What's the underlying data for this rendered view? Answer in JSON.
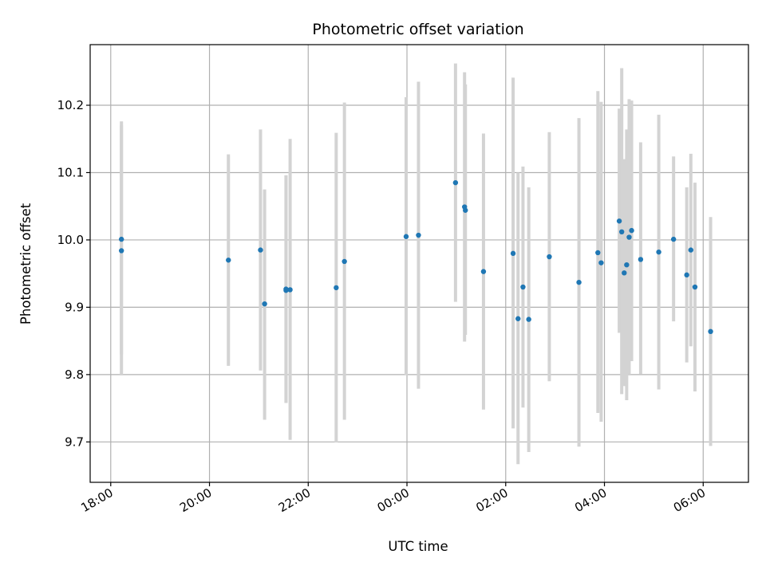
{
  "chart_data": {
    "type": "scatter",
    "title": "Photometric offset variation",
    "xlabel": "UTC time",
    "ylabel": "Photometric offset",
    "grid": true,
    "x_tick_labels": [
      "18:00",
      "20:00",
      "22:00",
      "00:00",
      "02:00",
      "04:00",
      "06:00"
    ],
    "y_tick_labels": [
      "9.7",
      "9.8",
      "9.9",
      "10.0",
      "10.1",
      "10.2"
    ],
    "xlim": [
      "17:35",
      "06:55"
    ],
    "ylim": [
      9.64,
      10.29
    ],
    "series": [
      {
        "points": [
          {
            "x": "18:13",
            "y": 9.984,
            "yerr_low": 9.8,
            "yerr_high": 10.176
          },
          {
            "x": "18:13",
            "y": 10.001,
            "yerr_low": 9.83,
            "yerr_high": 10.17
          },
          {
            "x": "20:23",
            "y": 9.97,
            "yerr_low": 9.813,
            "yerr_high": 10.127
          },
          {
            "x": "21:02",
            "y": 9.985,
            "yerr_low": 9.806,
            "yerr_high": 10.164
          },
          {
            "x": "21:07",
            "y": 9.905,
            "yerr_low": 9.733,
            "yerr_high": 10.075
          },
          {
            "x": "21:33",
            "y": 9.927,
            "yerr_low": 9.758,
            "yerr_high": 10.096
          },
          {
            "x": "21:33",
            "y": 9.925,
            "yerr_low": 9.758,
            "yerr_high": 10.096
          },
          {
            "x": "21:38",
            "y": 9.926,
            "yerr_low": 9.703,
            "yerr_high": 10.15
          },
          {
            "x": "22:34",
            "y": 9.929,
            "yerr_low": 9.699,
            "yerr_high": 10.159
          },
          {
            "x": "22:44",
            "y": 9.968,
            "yerr_low": 9.733,
            "yerr_high": 10.204
          },
          {
            "x": "23:59",
            "y": 10.005,
            "yerr_low": 9.799,
            "yerr_high": 10.212
          },
          {
            "x": "00:14",
            "y": 10.007,
            "yerr_low": 9.779,
            "yerr_high": 10.235
          },
          {
            "x": "00:59",
            "y": 10.085,
            "yerr_low": 9.908,
            "yerr_high": 10.262
          },
          {
            "x": "01:10",
            "y": 10.049,
            "yerr_low": 9.849,
            "yerr_high": 10.249
          },
          {
            "x": "01:11",
            "y": 10.044,
            "yerr_low": 9.859,
            "yerr_high": 10.231
          },
          {
            "x": "01:33",
            "y": 9.953,
            "yerr_low": 9.748,
            "yerr_high": 10.158
          },
          {
            "x": "02:09",
            "y": 9.98,
            "yerr_low": 9.72,
            "yerr_high": 10.241
          },
          {
            "x": "02:15",
            "y": 9.883,
            "yerr_low": 9.667,
            "yerr_high": 10.1
          },
          {
            "x": "02:21",
            "y": 9.93,
            "yerr_low": 9.751,
            "yerr_high": 10.109
          },
          {
            "x": "02:28",
            "y": 9.882,
            "yerr_low": 9.685,
            "yerr_high": 10.078
          },
          {
            "x": "02:53",
            "y": 9.975,
            "yerr_low": 9.79,
            "yerr_high": 10.16
          },
          {
            "x": "03:29",
            "y": 9.937,
            "yerr_low": 9.693,
            "yerr_high": 10.181
          },
          {
            "x": "03:52",
            "y": 9.981,
            "yerr_low": 9.743,
            "yerr_high": 10.221
          },
          {
            "x": "03:56",
            "y": 9.966,
            "yerr_low": 9.73,
            "yerr_high": 10.205
          },
          {
            "x": "04:18",
            "y": 10.028,
            "yerr_low": 9.862,
            "yerr_high": 10.195
          },
          {
            "x": "04:21",
            "y": 10.012,
            "yerr_low": 9.771,
            "yerr_high": 10.255
          },
          {
            "x": "04:24",
            "y": 9.951,
            "yerr_low": 9.783,
            "yerr_high": 10.12
          },
          {
            "x": "04:27",
            "y": 9.963,
            "yerr_low": 9.762,
            "yerr_high": 10.164
          },
          {
            "x": "04:30",
            "y": 10.004,
            "yerr_low": 9.8,
            "yerr_high": 10.209
          },
          {
            "x": "04:33",
            "y": 10.014,
            "yerr_low": 9.82,
            "yerr_high": 10.207
          },
          {
            "x": "04:44",
            "y": 9.971,
            "yerr_low": 9.801,
            "yerr_high": 10.145
          },
          {
            "x": "05:06",
            "y": 9.982,
            "yerr_low": 9.778,
            "yerr_high": 10.186
          },
          {
            "x": "05:24",
            "y": 10.001,
            "yerr_low": 9.879,
            "yerr_high": 10.124
          },
          {
            "x": "05:40",
            "y": 9.948,
            "yerr_low": 9.818,
            "yerr_high": 10.078
          },
          {
            "x": "05:45",
            "y": 9.985,
            "yerr_low": 9.842,
            "yerr_high": 10.128
          },
          {
            "x": "05:50",
            "y": 9.93,
            "yerr_low": 9.775,
            "yerr_high": 10.085
          },
          {
            "x": "06:09",
            "y": 9.864,
            "yerr_low": 9.694,
            "yerr_high": 10.034
          }
        ]
      }
    ]
  },
  "colors": {
    "point": "#1f77b4",
    "errorbar": "#d3d3d3",
    "grid": "#b0b0b0",
    "axis": "#000000"
  }
}
